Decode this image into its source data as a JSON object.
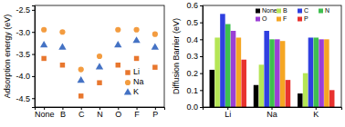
{
  "chart_data": [
    {
      "type": "scatter",
      "y_label": "Adsorption energy (eV)",
      "categories": [
        "None",
        "B",
        "C",
        "N",
        "O",
        "F",
        "P"
      ],
      "ylim": [
        -4.7,
        -2.4
      ],
      "yticks": [
        -4.5,
        {
          "value": -4,
          "label": "-4.0"
        },
        -3.5,
        {
          "value": -3,
          "label": "-3.0"
        },
        -2.5
      ],
      "legend": "lower right",
      "series": [
        {
          "name": "Li",
          "color": "#e8772e",
          "marker": "square",
          "values": [
            -3.6,
            -3.75,
            -4.45,
            -4.15,
            -3.75,
            -3.6,
            -3.8
          ]
        },
        {
          "name": "Na",
          "color": "#f39c40",
          "marker": "circle",
          "values": [
            -2.95,
            -3.0,
            -3.85,
            -3.55,
            -2.95,
            -2.95,
            -3.05
          ]
        },
        {
          "name": "K",
          "color": "#4472c4",
          "marker": "triangle",
          "values": [
            -3.3,
            -3.35,
            -4.1,
            -3.8,
            -3.3,
            -3.2,
            -3.35
          ]
        }
      ]
    },
    {
      "type": "bar",
      "y_label": "Diffusion Barrier (eV)",
      "categories": [
        "Li",
        "Na",
        "K"
      ],
      "ylim": [
        0,
        0.6
      ],
      "yticks": [
        {
          "value": 0,
          "label": "0.0"
        },
        0.1,
        0.2,
        0.3,
        0.4,
        0.5,
        0.6
      ],
      "legend": "upper right",
      "series": [
        {
          "name": "None",
          "color": "#000000",
          "values": [
            0.22,
            0.13,
            0.08
          ]
        },
        {
          "name": "B",
          "color": "#b5e655",
          "values": [
            0.41,
            0.25,
            0.2
          ]
        },
        {
          "name": "C",
          "color": "#2f3fe0",
          "values": [
            0.55,
            0.45,
            0.41
          ]
        },
        {
          "name": "N",
          "color": "#3fbf4f",
          "values": [
            0.49,
            0.4,
            0.41
          ]
        },
        {
          "name": "O",
          "color": "#9b3fd6",
          "values": [
            0.45,
            0.4,
            0.4
          ]
        },
        {
          "name": "F",
          "color": "#f5a623",
          "values": [
            0.41,
            0.39,
            0.4
          ]
        },
        {
          "name": "P",
          "color": "#e8322e",
          "values": [
            0.28,
            0.16,
            0.1
          ]
        }
      ]
    }
  ]
}
